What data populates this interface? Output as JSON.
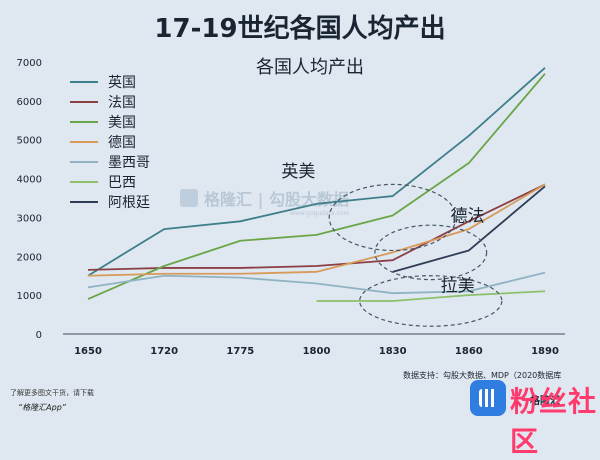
{
  "page": {
    "title": "17-19世纪各国人均产出",
    "source": "数据支持：勾股大数据、MDP（2020数据库",
    "footer_note": "了解更多图文干货，请下载",
    "footer_app": "“格隆汇App”",
    "brand": "格隆汇",
    "watermark_text": "粉丝社区",
    "center_watermark": "格隆汇 | 勾股大数据",
    "center_watermark_url": "www.gogudata.com"
  },
  "chart_data": {
    "type": "line",
    "title": "各国人均产出",
    "xlabel": "",
    "ylabel": "",
    "x": [
      1650,
      1720,
      1775,
      1800,
      1830,
      1860,
      1890
    ],
    "ylim": [
      0,
      7000
    ],
    "yticks": [
      0,
      1000,
      2000,
      3000,
      4000,
      5000,
      6000,
      7000
    ],
    "grid": false,
    "legend": "top-left",
    "series": [
      {
        "name": "英国",
        "color": "#3e7f8a",
        "values": [
          1500,
          2700,
          2900,
          3350,
          3550,
          5100,
          6850
        ]
      },
      {
        "name": "法国",
        "color": "#8b3e44",
        "values": [
          1650,
          1700,
          1700,
          1750,
          1900,
          2900,
          3850
        ]
      },
      {
        "name": "美国",
        "color": "#6aa548",
        "values": [
          900,
          1750,
          2400,
          2550,
          3050,
          4400,
          6700
        ]
      },
      {
        "name": "德国",
        "color": "#d89a5a",
        "values": [
          1500,
          1550,
          1550,
          1600,
          2100,
          2700,
          3850
        ]
      },
      {
        "name": "墨西哥",
        "color": "#8fb3c2",
        "values": [
          1200,
          1500,
          1450,
          1300,
          1050,
          1100,
          1580
        ]
      },
      {
        "name": "巴西",
        "color": "#8cc06a",
        "values": [
          null,
          null,
          null,
          850,
          850,
          1000,
          1100
        ]
      },
      {
        "name": "阿根廷",
        "color": "#2e3d55",
        "values": [
          null,
          null,
          null,
          null,
          1600,
          2150,
          3800
        ]
      }
    ],
    "annotations": [
      {
        "text": "英美",
        "x": 1775,
        "y": 4200
      },
      {
        "text": "德法",
        "x": 1830,
        "y": 3050
      },
      {
        "text": "拉美",
        "x": 1830,
        "y": 1250
      }
    ],
    "highlight_ellipses": [
      {
        "cx": 1830,
        "cy": 3000,
        "rx_years": 25,
        "ry_values": 850
      },
      {
        "cx": 1845,
        "cy": 2100,
        "rx_years": 22,
        "ry_values": 700
      },
      {
        "cx": 1845,
        "cy": 850,
        "rx_years": 28,
        "ry_values": 650
      }
    ]
  }
}
